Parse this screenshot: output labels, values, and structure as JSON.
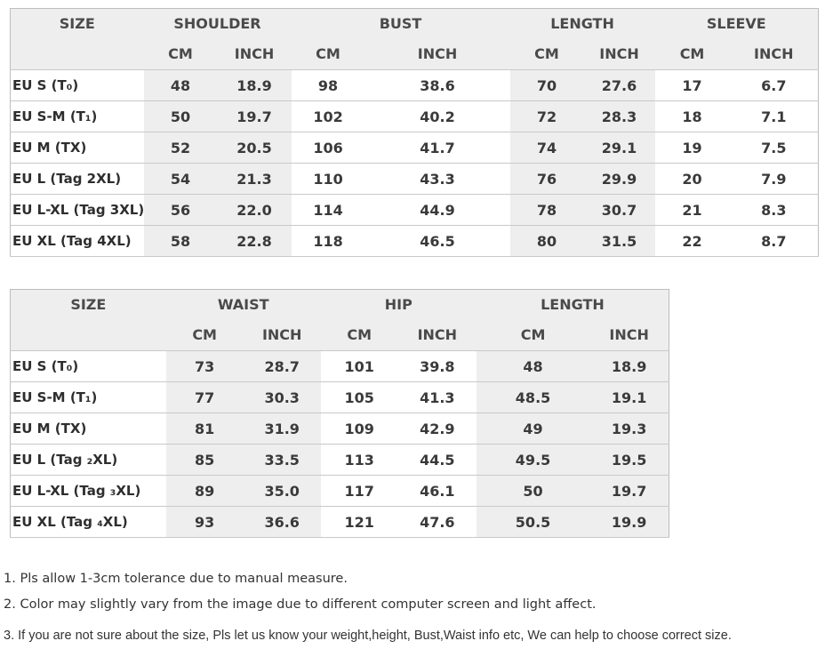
{
  "table1": {
    "headers": {
      "size": "SIZE",
      "groups": [
        "SHOULDER",
        "BUST",
        "LENGTH",
        "SLEEVE"
      ],
      "units": [
        "CM",
        "INCH",
        "CM",
        "INCH",
        "CM",
        "INCH",
        "CM",
        "INCH"
      ]
    },
    "rows": [
      {
        "size": "EU S (T₀)",
        "values": [
          "48",
          "18.9",
          "98",
          "38.6",
          "70",
          "27.6",
          "17",
          "6.7"
        ]
      },
      {
        "size": "EU S-M (T₁)",
        "values": [
          "50",
          "19.7",
          "102",
          "40.2",
          "72",
          "28.3",
          "18",
          "7.1"
        ]
      },
      {
        "size": "EU M (TX)",
        "values": [
          "52",
          "20.5",
          "106",
          "41.7",
          "74",
          "29.1",
          "19",
          "7.5"
        ]
      },
      {
        "size": "EU L (Tag 2XL)",
        "values": [
          "54",
          "21.3",
          "110",
          "43.3",
          "76",
          "29.9",
          "20",
          "7.9"
        ]
      },
      {
        "size": "EU L-XL (Tag 3XL)",
        "values": [
          "56",
          "22.0",
          "114",
          "44.9",
          "78",
          "30.7",
          "21",
          "8.3"
        ]
      },
      {
        "size": "EU XL (Tag 4XL)",
        "values": [
          "58",
          "22.8",
          "118",
          "46.5",
          "80",
          "31.5",
          "22",
          "8.7"
        ]
      }
    ]
  },
  "table2": {
    "headers": {
      "size": "SIZE",
      "groups": [
        "WAIST",
        "HIP",
        "LENGTH"
      ],
      "units": [
        "CM",
        "INCH",
        "CM",
        "INCH",
        "CM",
        "INCH"
      ]
    },
    "rows": [
      {
        "size": "EU S (T₀)",
        "values": [
          "73",
          "28.7",
          "101",
          "39.8",
          "48",
          "18.9"
        ]
      },
      {
        "size": "EU S-M (T₁)",
        "values": [
          "77",
          "30.3",
          "105",
          "41.3",
          "48.5",
          "19.1"
        ]
      },
      {
        "size": "EU M (TX)",
        "values": [
          "81",
          "31.9",
          "109",
          "42.9",
          "49",
          "19.3"
        ]
      },
      {
        "size": "EU L (Tag ₂XL)",
        "values": [
          "85",
          "33.5",
          "113",
          "44.5",
          "49.5",
          "19.5"
        ]
      },
      {
        "size": "EU L-XL (Tag ₃XL)",
        "values": [
          "89",
          "35.0",
          "117",
          "46.1",
          "50",
          "19.7"
        ]
      },
      {
        "size": "EU XL (Tag ₄XL)",
        "values": [
          "93",
          "36.6",
          "121",
          "47.6",
          "50.5",
          "19.9"
        ]
      }
    ]
  },
  "notes": [
    "1. Pls allow 1-3cm tolerance due to manual measure.",
    "2. Color may slightly vary from the image due to different computer screen and light affect.",
    "3. If you are not sure about the size, Pls let us know your weight,height, Bust,Waist info etc, We can help to choose correct size."
  ],
  "colors": {
    "shade": "#eeeeee",
    "border": "#c9c9c9",
    "text": "#3a3a3a"
  }
}
